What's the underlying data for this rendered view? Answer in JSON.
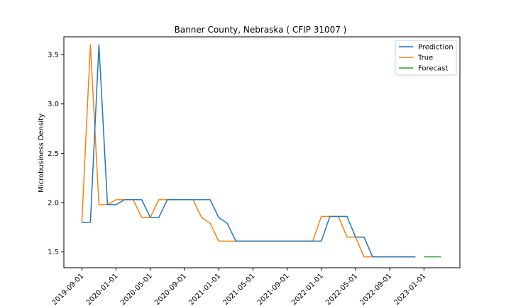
{
  "chart_data": {
    "type": "line",
    "title": "Banner County, Nebraska ( CFIP 31007 )",
    "xlabel": "",
    "ylabel": "Microbusiness Density",
    "x_tick_labels": [
      "2019-09-01",
      "2020-01-01",
      "2020-05-01",
      "2020-09-01",
      "2021-01-01",
      "2021-05-01",
      "2021-09-01",
      "2022-01-01",
      "2022-05-01",
      "2022-09-01",
      "2023-01-01"
    ],
    "y_ticks": [
      1.5,
      2.0,
      2.5,
      3.0,
      3.5
    ],
    "y_tick_labels": [
      "1.5",
      "2.0",
      "2.5",
      "3.0",
      "3.5"
    ],
    "xlim_month_index": [
      -2.1,
      44.2
    ],
    "ylim": [
      1.34,
      3.68
    ],
    "legend_position": "top-right",
    "series": [
      {
        "name": "Prediction",
        "color": "#1f77b4",
        "x_month_index": [
          0,
          1,
          2,
          3,
          4,
          5,
          6,
          7,
          8,
          9,
          10,
          11,
          12,
          13,
          14,
          15,
          16,
          17,
          18,
          19,
          20,
          21,
          22,
          23,
          24,
          25,
          26,
          27,
          28,
          29,
          30,
          31,
          32,
          33,
          34,
          35,
          36,
          37,
          38,
          39
        ],
        "values": [
          1.8,
          1.8,
          3.6,
          1.98,
          1.98,
          2.03,
          2.03,
          2.03,
          1.85,
          1.85,
          2.03,
          2.03,
          2.03,
          2.03,
          2.03,
          2.03,
          1.85,
          1.79,
          1.61,
          1.61,
          1.61,
          1.61,
          1.61,
          1.61,
          1.61,
          1.61,
          1.61,
          1.61,
          1.61,
          1.86,
          1.86,
          1.86,
          1.65,
          1.65,
          1.45,
          1.45,
          1.45,
          1.45,
          1.45,
          1.45
        ]
      },
      {
        "name": "True",
        "color": "#ff7f0e",
        "x_month_index": [
          0,
          1,
          2,
          3,
          4,
          5,
          6,
          7,
          8,
          9,
          10,
          11,
          12,
          13,
          14,
          15,
          16,
          17,
          18,
          19,
          20,
          21,
          22,
          23,
          24,
          25,
          26,
          27,
          28,
          29,
          30,
          31,
          32,
          33,
          34,
          35,
          36,
          37,
          38,
          39
        ],
        "values": [
          1.8,
          3.6,
          1.98,
          1.98,
          2.03,
          2.03,
          2.03,
          1.85,
          1.85,
          2.03,
          2.03,
          2.03,
          2.03,
          2.03,
          1.85,
          1.79,
          1.61,
          1.61,
          1.61,
          1.61,
          1.61,
          1.61,
          1.61,
          1.61,
          1.61,
          1.61,
          1.61,
          1.61,
          1.86,
          1.86,
          1.86,
          1.65,
          1.65,
          1.45,
          1.45,
          1.45,
          1.45,
          1.45,
          1.45,
          1.45
        ]
      },
      {
        "name": "Forecast",
        "color": "#2ca02c",
        "x_month_index": [
          40,
          41,
          42
        ],
        "values": [
          1.45,
          1.45,
          1.45
        ]
      }
    ]
  }
}
